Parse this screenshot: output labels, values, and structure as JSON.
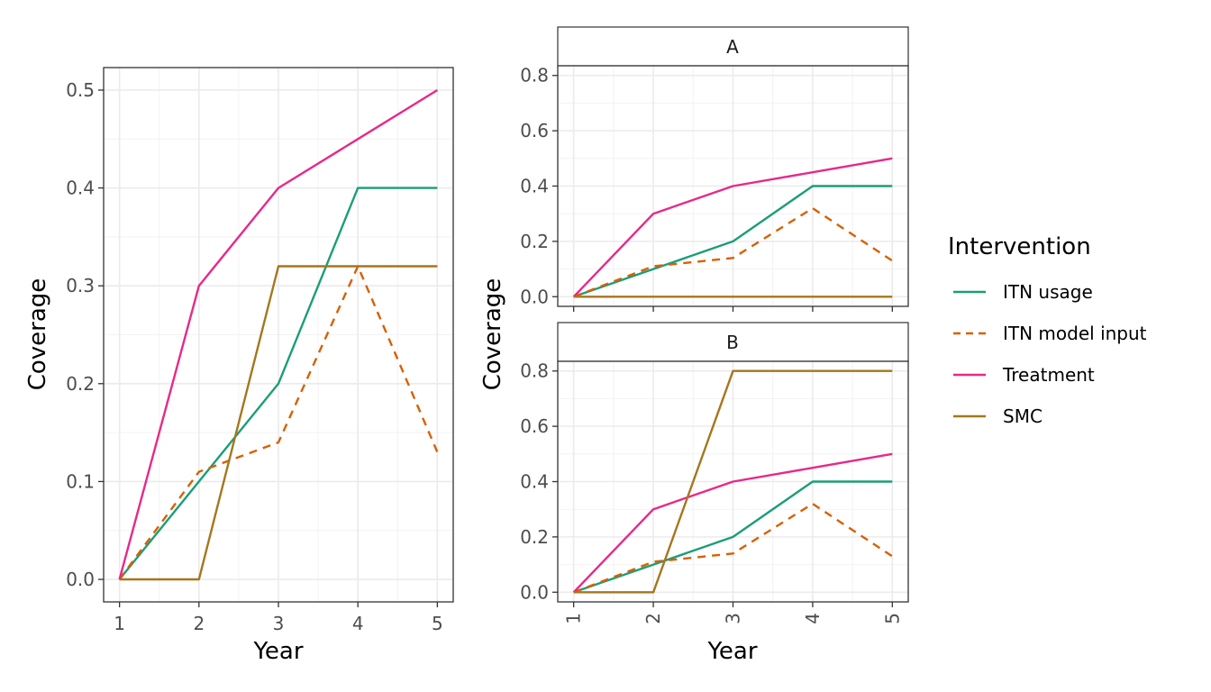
{
  "chart_data": [
    {
      "type": "line",
      "xlabel": "Year",
      "ylabel": "Coverage",
      "x": [
        1,
        2,
        3,
        4,
        5
      ],
      "xlim": [
        0.8,
        5.2
      ],
      "ylim": [
        -0.023,
        0.523
      ],
      "xticks": [
        "1",
        "2",
        "3",
        "4",
        "5"
      ],
      "yticks": [
        0,
        0.1,
        0.2,
        0.3,
        0.4,
        0.5
      ],
      "ytick_labels": [
        "0.0",
        "0.1",
        "0.2",
        "0.3",
        "0.4",
        "0.5"
      ],
      "grid": true,
      "series": [
        {
          "name": "ITN usage",
          "values": [
            0,
            0.1,
            0.2,
            0.4,
            0.4
          ]
        },
        {
          "name": "ITN model input",
          "values": [
            0,
            0.11,
            0.14,
            0.32,
            0.13
          ]
        },
        {
          "name": "Treatment",
          "values": [
            0,
            0.3,
            0.4,
            0.45,
            0.5
          ]
        },
        {
          "name": "SMC",
          "values": [
            0,
            0,
            0.32,
            0.32,
            0.32
          ]
        }
      ]
    },
    {
      "type": "line",
      "facet": "A",
      "xlabel": "Year",
      "ylabel": "Coverage",
      "x": [
        1,
        2,
        3,
        4,
        5
      ],
      "xlim": [
        0.8,
        5.2
      ],
      "ylim": [
        -0.035,
        0.835
      ],
      "xticks": [
        "1",
        "2",
        "3",
        "4",
        "5"
      ],
      "yticks": [
        0,
        0.2,
        0.4,
        0.6,
        0.8
      ],
      "ytick_labels": [
        "0.0",
        "0.2",
        "0.4",
        "0.6",
        "0.8"
      ],
      "grid": true,
      "series": [
        {
          "name": "ITN usage",
          "values": [
            0,
            0.1,
            0.2,
            0.4,
            0.4
          ]
        },
        {
          "name": "ITN model input",
          "values": [
            0,
            0.11,
            0.14,
            0.32,
            0.13
          ]
        },
        {
          "name": "Treatment",
          "values": [
            0,
            0.3,
            0.4,
            0.45,
            0.5
          ]
        },
        {
          "name": "SMC",
          "values": [
            0,
            0,
            0,
            0,
            0
          ]
        }
      ]
    },
    {
      "type": "line",
      "facet": "B",
      "xlabel": "Year",
      "ylabel": "Coverage",
      "x": [
        1,
        2,
        3,
        4,
        5
      ],
      "xlim": [
        0.8,
        5.2
      ],
      "ylim": [
        -0.035,
        0.835
      ],
      "xticks": [
        "1",
        "2",
        "3",
        "4",
        "5"
      ],
      "yticks": [
        0,
        0.2,
        0.4,
        0.6,
        0.8
      ],
      "ytick_labels": [
        "0.0",
        "0.2",
        "0.4",
        "0.6",
        "0.8"
      ],
      "grid": true,
      "series": [
        {
          "name": "ITN usage",
          "values": [
            0,
            0.1,
            0.2,
            0.4,
            0.4
          ]
        },
        {
          "name": "ITN model input",
          "values": [
            0,
            0.11,
            0.14,
            0.32,
            0.13
          ]
        },
        {
          "name": "Treatment",
          "values": [
            0,
            0.3,
            0.4,
            0.45,
            0.5
          ]
        },
        {
          "name": "SMC",
          "values": [
            0,
            0.0,
            0.8,
            0.8,
            0.8
          ]
        }
      ]
    }
  ],
  "legend": {
    "title": "Intervention",
    "placement": "right",
    "items": [
      {
        "label": "ITN usage",
        "color": "#1b9e77",
        "dashed": false
      },
      {
        "label": "ITN model input",
        "color": "#d95f02",
        "dashed": true
      },
      {
        "label": "Treatment",
        "color": "#e7298a",
        "dashed": false
      },
      {
        "label": "SMC",
        "color": "#a6761d",
        "dashed": false
      }
    ]
  },
  "colors": {
    "ITN usage": "#1b9e77",
    "ITN model input": "#d95f02",
    "Treatment": "#e7298a",
    "SMC": "#a6761d"
  }
}
